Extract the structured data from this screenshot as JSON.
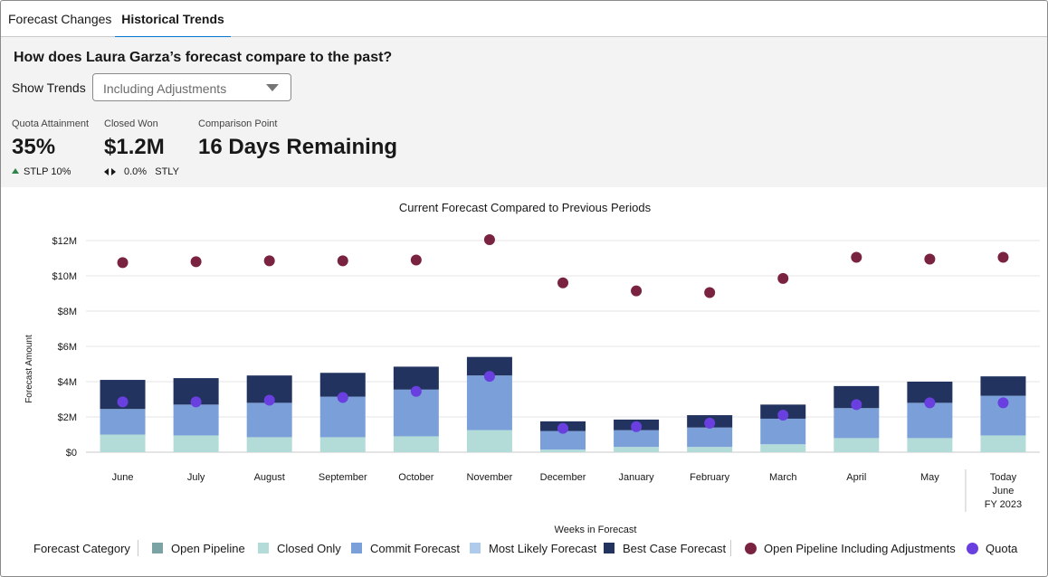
{
  "tabs": [
    "Forecast Changes",
    "Historical Trends"
  ],
  "summary": {
    "question": "How does Laura Garza’s forecast compare to the past?",
    "show_trends_label": "Show Trends",
    "show_trends_value": "Including Adjustments",
    "metrics": [
      {
        "label": "Quota Attainment",
        "value": "35%",
        "sub": "STLP 10%"
      },
      {
        "label": "Closed Won",
        "value": "$1.2M",
        "sub_value": "0.0%",
        "sub_label": "STLY"
      },
      {
        "label": "Comparison Point",
        "value": "16 Days Remaining"
      }
    ]
  },
  "legend": {
    "title": "Forecast Category",
    "items": [
      "Open Pipeline",
      "Closed Only",
      "Commit Forecast",
      "Most Likely Forecast",
      "Best Case Forecast",
      "Open Pipeline Including Adjustments",
      "Quota"
    ]
  },
  "colors": {
    "open_pipeline": "#7ba3a3",
    "closed_only": "#b3dcd9",
    "commit": "#7ba0d9",
    "most_likely": "#aecbeb",
    "best_case": "#21335e",
    "pipeline_adj": "#7a2340",
    "quota": "#6a3fe0"
  },
  "chart_data": {
    "type": "bar",
    "title": "Current Forecast Compared to Previous Periods",
    "xlabel": "Weeks in Forecast",
    "ylabel": "Forecast Amount",
    "ylim": [
      0,
      12
    ],
    "yticks": [
      "$0",
      "$2M",
      "$4M",
      "$6M",
      "$8M",
      "$10M",
      "$12M"
    ],
    "categories": [
      "June",
      "July",
      "August",
      "September",
      "October",
      "November",
      "December",
      "January",
      "February",
      "March",
      "April",
      "May",
      "Today"
    ],
    "today_label_lines": [
      "Today",
      "June",
      "FY 2023"
    ],
    "series": [
      {
        "name": "Closed Only",
        "kind": "bar",
        "values": [
          1.0,
          0.95,
          0.85,
          0.85,
          0.9,
          1.25,
          0.15,
          0.3,
          0.3,
          0.45,
          0.8,
          0.8,
          0.95
        ]
      },
      {
        "name": "Commit Forecast",
        "kind": "bar",
        "values": [
          1.45,
          1.75,
          1.95,
          2.3,
          2.65,
          3.1,
          1.05,
          0.95,
          1.1,
          1.45,
          1.7,
          2.0,
          2.25
        ]
      },
      {
        "name": "Best Case Forecast",
        "kind": "bar",
        "values": [
          1.65,
          1.5,
          1.55,
          1.35,
          1.3,
          1.05,
          0.55,
          0.6,
          0.7,
          0.8,
          1.25,
          1.2,
          1.1
        ]
      },
      {
        "name": "Open Pipeline Including Adjustments",
        "kind": "point",
        "values": [
          10.75,
          10.8,
          10.85,
          10.85,
          10.9,
          12.05,
          9.6,
          9.15,
          9.05,
          9.85,
          11.05,
          10.95,
          11.05
        ]
      },
      {
        "name": "Quota",
        "kind": "point",
        "values": [
          2.85,
          2.85,
          2.95,
          3.1,
          3.45,
          4.3,
          1.35,
          1.45,
          1.65,
          2.1,
          2.7,
          2.8,
          2.8
        ]
      }
    ],
    "grid": true,
    "legend_position": "bottom"
  }
}
